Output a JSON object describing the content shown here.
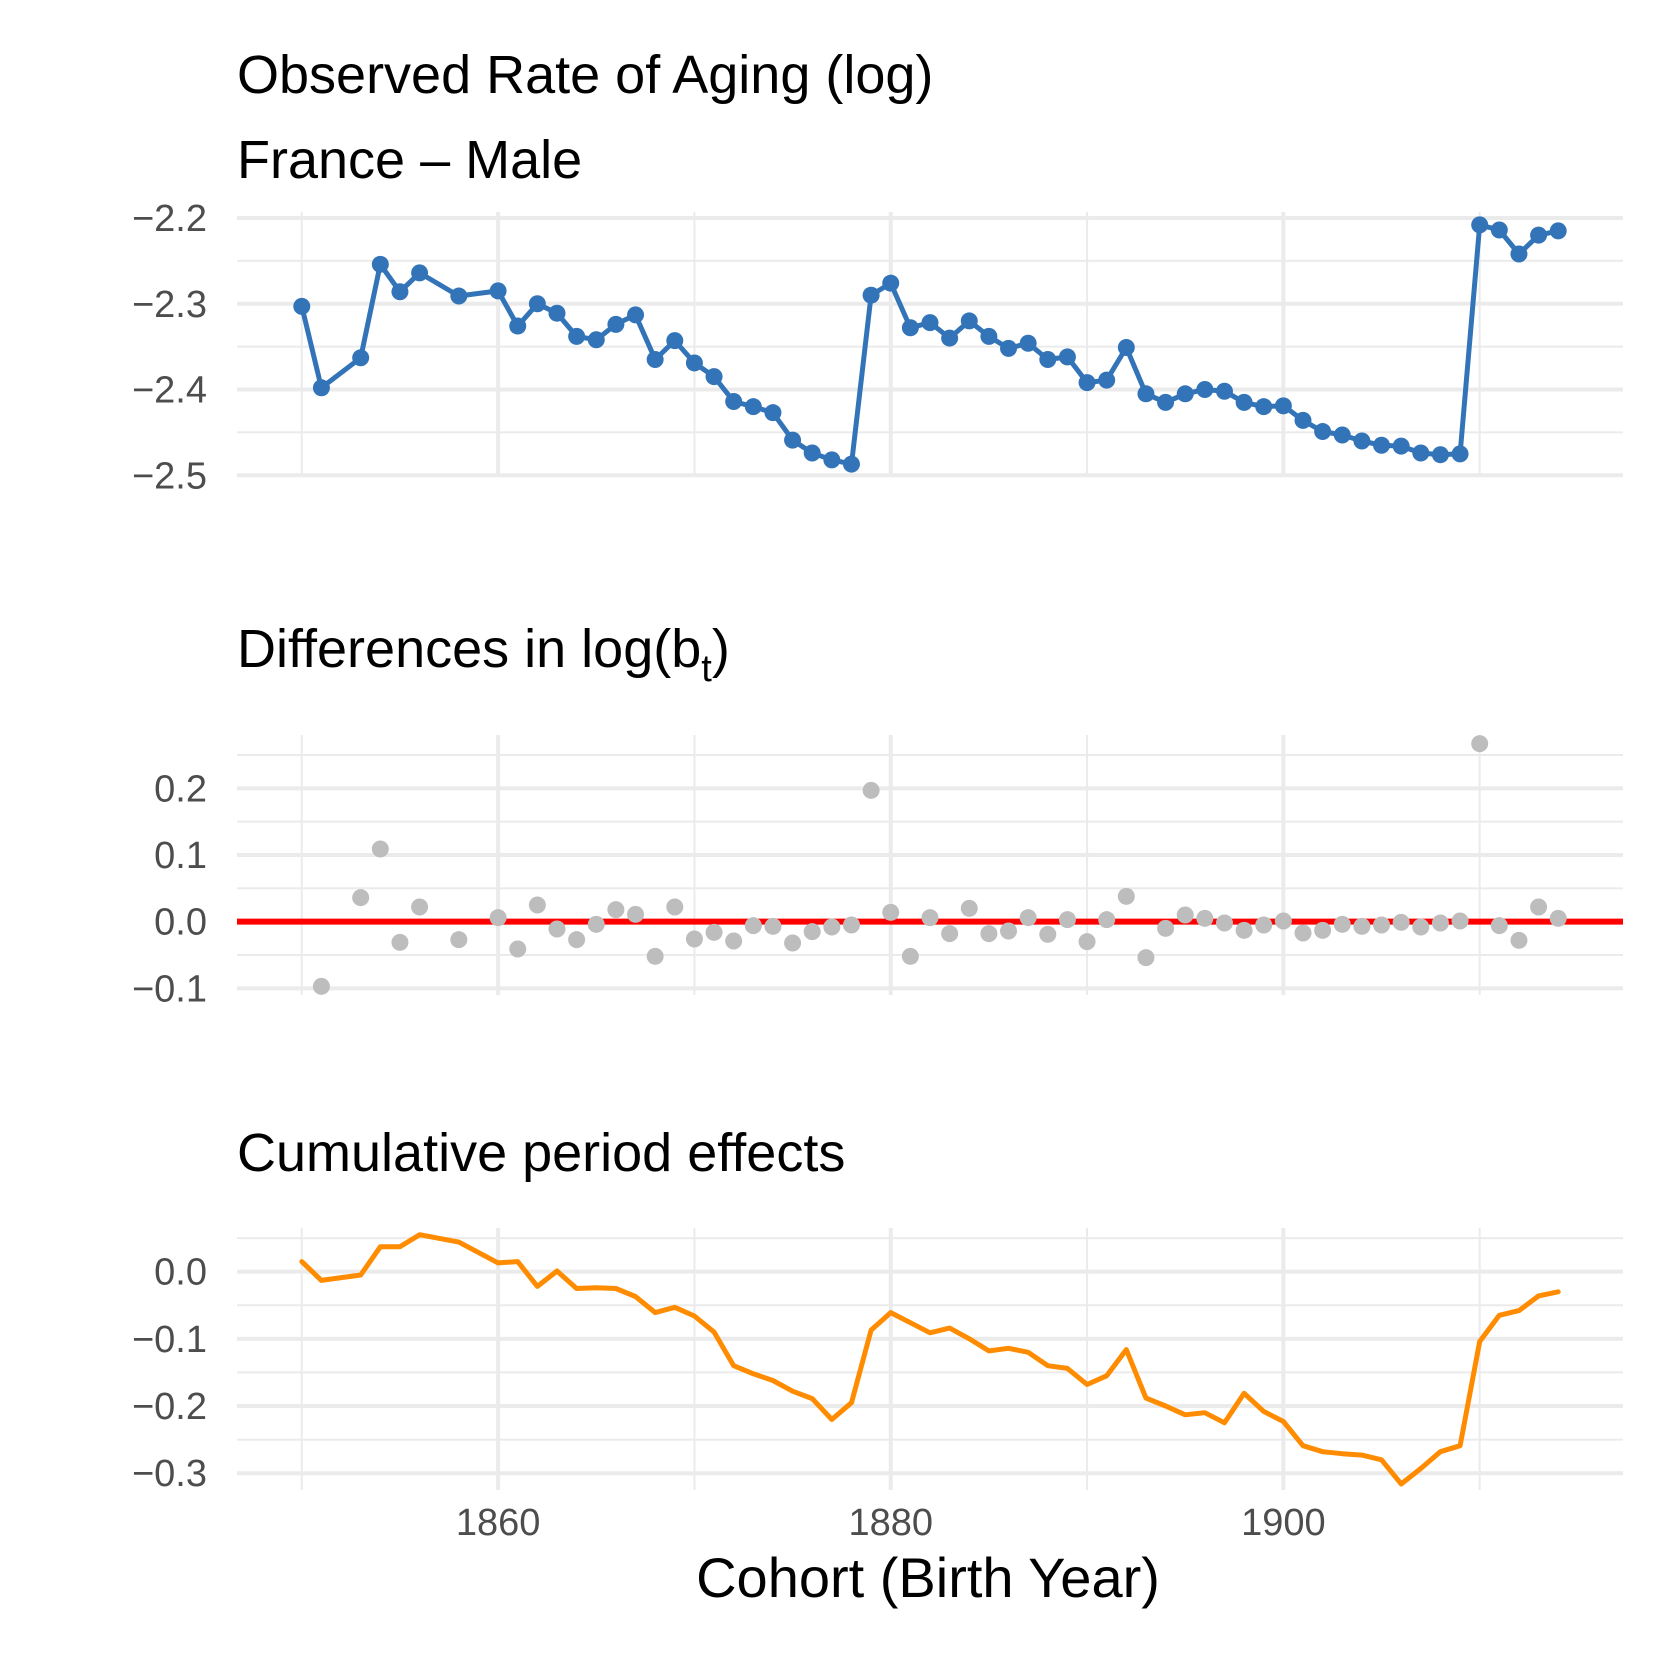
{
  "chart_data": [
    {
      "type": "line",
      "title": "Observed Rate of Aging (log)",
      "subtitle": "France – Male",
      "markers": true,
      "color": "#3374B8",
      "x": [
        1850,
        1851,
        1853,
        1854,
        1855,
        1856,
        1858,
        1860,
        1861,
        1862,
        1863,
        1864,
        1865,
        1866,
        1867,
        1868,
        1869,
        1870,
        1871,
        1872,
        1873,
        1874,
        1875,
        1876,
        1877,
        1878,
        1879,
        1880,
        1881,
        1882,
        1883,
        1884,
        1885,
        1886,
        1887,
        1888,
        1889,
        1890,
        1891,
        1892,
        1893,
        1894,
        1895,
        1896,
        1897,
        1898,
        1899,
        1900,
        1901,
        1902,
        1903,
        1904,
        1905,
        1906,
        1907,
        1908,
        1909,
        1910,
        1911,
        1912,
        1913,
        1914
      ],
      "y": [
        -2.303,
        -2.398,
        -2.363,
        -2.254,
        -2.286,
        -2.264,
        -2.291,
        -2.285,
        -2.326,
        -2.3,
        -2.311,
        -2.338,
        -2.342,
        -2.324,
        -2.313,
        -2.365,
        -2.343,
        -2.369,
        -2.385,
        -2.414,
        -2.42,
        -2.427,
        -2.459,
        -2.474,
        -2.482,
        -2.487,
        -2.29,
        -2.276,
        -2.328,
        -2.322,
        -2.34,
        -2.32,
        -2.338,
        -2.352,
        -2.346,
        -2.365,
        -2.362,
        -2.392,
        -2.389,
        -2.351,
        -2.405,
        -2.415,
        -2.405,
        -2.4,
        -2.402,
        -2.415,
        -2.42,
        -2.419,
        -2.436,
        -2.449,
        -2.453,
        -2.46,
        -2.465,
        -2.466,
        -2.474,
        -2.476,
        -2.475,
        -2.208,
        -2.214,
        -2.242,
        -2.22,
        -2.215
      ],
      "yticks": [
        -2.5,
        -2.4,
        -2.3,
        -2.2
      ],
      "ytick_labels": [
        "−2.5",
        "−2.4",
        "−2.3",
        "−2.2"
      ],
      "ylim": [
        -2.502,
        -2.193
      ]
    },
    {
      "type": "scatter",
      "title_main": "Differences in log(b",
      "title_sub": "t",
      "title_close": ")",
      "color": "#BDBDBD",
      "reference_line": {
        "y": 0,
        "color": "#FF0000"
      },
      "x": [
        1851,
        1853,
        1854,
        1855,
        1856,
        1858,
        1860,
        1861,
        1862,
        1863,
        1864,
        1865,
        1866,
        1867,
        1868,
        1869,
        1870,
        1871,
        1872,
        1873,
        1874,
        1875,
        1876,
        1877,
        1878,
        1879,
        1880,
        1881,
        1882,
        1883,
        1884,
        1885,
        1886,
        1887,
        1888,
        1889,
        1890,
        1891,
        1892,
        1893,
        1894,
        1895,
        1896,
        1897,
        1898,
        1899,
        1900,
        1901,
        1902,
        1903,
        1904,
        1905,
        1906,
        1907,
        1908,
        1909,
        1910,
        1911,
        1912,
        1913,
        1914
      ],
      "y": [
        -0.097,
        0.036,
        0.109,
        -0.031,
        0.022,
        -0.027,
        0.006,
        -0.041,
        0.025,
        -0.011,
        -0.027,
        -0.004,
        0.018,
        0.011,
        -0.052,
        0.022,
        -0.026,
        -0.016,
        -0.029,
        -0.006,
        -0.007,
        -0.032,
        -0.015,
        -0.008,
        -0.005,
        0.197,
        0.014,
        -0.052,
        0.006,
        -0.018,
        0.02,
        -0.018,
        -0.014,
        0.006,
        -0.019,
        0.003,
        -0.03,
        0.003,
        0.038,
        -0.054,
        -0.01,
        0.01,
        0.005,
        -0.002,
        -0.013,
        -0.005,
        0.001,
        -0.017,
        -0.013,
        -0.004,
        -0.007,
        -0.005,
        -0.001,
        -0.008,
        -0.002,
        0.001,
        0.267,
        -0.006,
        -0.028,
        0.022,
        0.005
      ],
      "yticks": [
        -0.1,
        0,
        0.1,
        0.2
      ],
      "ytick_labels": [
        "−0.1",
        "0.0",
        "0.1",
        "0.2"
      ],
      "ylim": [
        -0.11,
        0.28
      ]
    },
    {
      "type": "line",
      "title": "Cumulative period effects",
      "color": "#FF8C00",
      "x": [
        1850,
        1851,
        1853,
        1854,
        1855,
        1856,
        1858,
        1860,
        1861,
        1862,
        1863,
        1864,
        1865,
        1866,
        1867,
        1868,
        1869,
        1870,
        1871,
        1872,
        1873,
        1874,
        1875,
        1876,
        1877,
        1878,
        1879,
        1880,
        1881,
        1882,
        1883,
        1884,
        1885,
        1886,
        1887,
        1888,
        1889,
        1890,
        1891,
        1892,
        1893,
        1894,
        1895,
        1896,
        1897,
        1898,
        1899,
        1900,
        1901,
        1902,
        1903,
        1904,
        1905,
        1906,
        1907,
        1908,
        1909,
        1910,
        1911,
        1912,
        1913,
        1914
      ],
      "y": [
        0.015,
        -0.013,
        -0.005,
        0.037,
        0.037,
        0.055,
        0.044,
        0.013,
        0.015,
        -0.022,
        0.001,
        -0.025,
        -0.024,
        -0.025,
        -0.037,
        -0.061,
        -0.053,
        -0.066,
        -0.09,
        -0.14,
        -0.152,
        -0.162,
        -0.178,
        -0.189,
        -0.22,
        -0.195,
        -0.087,
        -0.061,
        -0.076,
        -0.091,
        -0.084,
        -0.1,
        -0.118,
        -0.114,
        -0.12,
        -0.14,
        -0.144,
        -0.168,
        -0.155,
        -0.116,
        -0.188,
        -0.2,
        -0.213,
        -0.21,
        -0.225,
        -0.181,
        -0.208,
        -0.223,
        -0.259,
        -0.268,
        -0.271,
        -0.273,
        -0.28,
        -0.316,
        -0.293,
        -0.268,
        -0.259,
        -0.104,
        -0.065,
        -0.058,
        -0.036,
        -0.03
      ],
      "yticks": [
        -0.3,
        -0.2,
        -0.1,
        0
      ],
      "ytick_labels": [
        "−0.3",
        "−0.2",
        "−0.1",
        "0.0"
      ],
      "ylim": [
        -0.325,
        0.065
      ]
    }
  ],
  "shared_x_axis": {
    "xlim": [
      1846.7,
      1917.3
    ],
    "ticks": [
      1860,
      1880,
      1900
    ],
    "tick_labels": [
      "1860",
      "1880",
      "1900"
    ],
    "minor_ticks": [
      1850,
      1870,
      1890,
      1910
    ],
    "xlabel": "Cohort (Birth Year)"
  }
}
